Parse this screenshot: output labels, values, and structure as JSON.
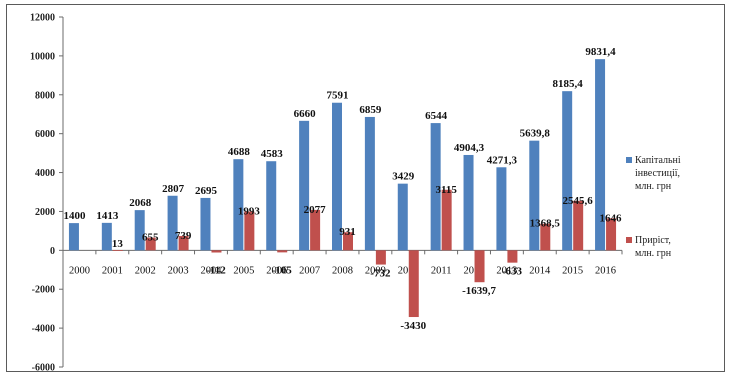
{
  "chart_data": {
    "type": "bar",
    "categories": [
      "2000",
      "2001",
      "2002",
      "2003",
      "2004",
      "2005",
      "2006",
      "2007",
      "2008",
      "2009",
      "2010",
      "2011",
      "2012",
      "2013",
      "2014",
      "2015",
      "2016"
    ],
    "series": [
      {
        "name": "Капітальні інвестиції, млн. грн",
        "color": "#4f81bd",
        "values": [
          1400,
          1413,
          2068,
          2807,
          2695,
          4688,
          4583,
          6660,
          7591,
          6859,
          3429,
          6544,
          4904.3,
          4271.3,
          5639.8,
          8185.4,
          9831.4
        ],
        "labels": [
          "1400",
          "1413",
          "2068",
          "2807",
          "2695",
          "4688",
          "4583",
          "6660",
          "7591",
          "6859",
          "3429",
          "6544",
          "4904,3",
          "4271,3",
          "5639,8",
          "8185,4",
          "9831,4"
        ]
      },
      {
        "name": "Приріст, млн. грн",
        "color": "#c0504d",
        "values": [
          null,
          13,
          655,
          739,
          -112,
          1993,
          -105,
          2077,
          931,
          -732,
          -3430,
          3115,
          -1639.7,
          -633,
          1368.5,
          2545.6,
          1646
        ],
        "labels": [
          "",
          "13",
          "655",
          "739",
          "-112",
          "1993",
          "-105",
          "2077",
          "931",
          "-732",
          "-3430",
          "3115",
          "-1639,7",
          "-633",
          "1368,5",
          "2545,6",
          "1646"
        ]
      }
    ],
    "ylim": [
      -6000,
      12000
    ],
    "yticks": [
      "12000",
      "10000",
      "8000",
      "6000",
      "4000",
      "2000",
      "0",
      "-2000",
      "-4000",
      "-6000"
    ],
    "ytick_values": [
      12000,
      10000,
      8000,
      6000,
      4000,
      2000,
      0,
      -2000,
      -4000,
      -6000
    ],
    "legend_position": "right",
    "legend": [
      {
        "lines": [
          "Капітальні",
          "інвестиції,",
          "млн. грн"
        ]
      },
      {
        "lines": [
          "Приріст,",
          "млн. грн"
        ]
      }
    ],
    "grid": false
  }
}
